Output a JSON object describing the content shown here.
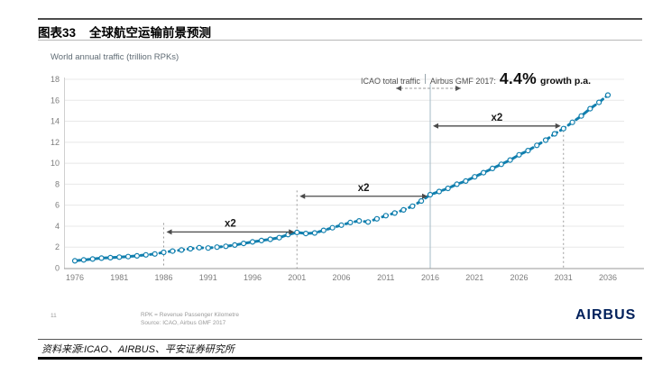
{
  "header": {
    "figure_label": "图表33",
    "title": "全球航空运输前景预测"
  },
  "footer": {
    "source_text": "资料来源:ICAO、AIRBUS、平安证券研究所"
  },
  "slide": {
    "page_number": "11",
    "footnote_line1": "RPK = Revenue Passenger Kilometre",
    "footnote_line2": "Source: ICAO, Airbus GMF 2017",
    "brand": "AIRBUS"
  },
  "colors": {
    "curve": "#117fae",
    "marker_fill": "#ffffff",
    "airbus_navy": "#00205b",
    "arrow": "#4a4a4a",
    "grid": "#e8e8e8",
    "axis": "#9a9a9a",
    "tick_text": "#7d7d7d",
    "note_gray": "#4f4f4f",
    "line_2016": "#a3bac6",
    "dotted_line": "#9a9a9a"
  },
  "chart_data": {
    "type": "line",
    "title": "World annual traffic (trillion RPKs)",
    "xlabel": "",
    "ylabel": "World annual traffic (trillion RPKs)",
    "xlim": [
      1976,
      2036
    ],
    "ylim": [
      0,
      18
    ],
    "grid": "horizontal",
    "x_ticks": [
      1976,
      1981,
      1986,
      1991,
      1996,
      2001,
      2006,
      2011,
      2016,
      2021,
      2026,
      2031,
      2036
    ],
    "y_ticks": [
      0,
      2,
      4,
      6,
      8,
      10,
      12,
      14,
      16,
      18
    ],
    "series": [
      {
        "name": "World annual traffic (trillion RPKs)",
        "style": "dashed-with-open-markers",
        "x_start": 1976,
        "x_step": 1,
        "values": [
          0.7,
          0.78,
          0.87,
          0.95,
          1.0,
          1.05,
          1.1,
          1.17,
          1.26,
          1.35,
          1.5,
          1.62,
          1.73,
          1.85,
          1.95,
          1.92,
          2.0,
          2.08,
          2.2,
          2.35,
          2.5,
          2.63,
          2.75,
          2.9,
          3.2,
          3.4,
          3.3,
          3.35,
          3.6,
          3.85,
          4.1,
          4.35,
          4.5,
          4.4,
          4.7,
          5.0,
          5.25,
          5.55,
          5.9,
          6.4,
          7.0,
          7.3,
          7.6,
          8.0,
          8.3,
          8.7,
          9.1,
          9.5,
          9.9,
          10.3,
          10.8,
          11.2,
          11.7,
          12.2,
          12.8,
          13.3,
          13.9,
          14.5,
          15.2,
          15.8,
          16.5
        ]
      }
    ],
    "doubling_arrows": [
      {
        "label": "x2",
        "from_year": 1986,
        "to_year": 2001,
        "value": 3.45
      },
      {
        "label": "x2",
        "from_year": 2001,
        "to_year": 2016,
        "value": 6.85
      },
      {
        "label": "x2",
        "from_year": 2016,
        "to_year": 2031,
        "value": 13.55
      }
    ],
    "vertical_lines": [
      {
        "year": 1986,
        "style": "dotted",
        "top_value": 4.3
      },
      {
        "year": 2001,
        "style": "dotted",
        "top_value": 7.4
      },
      {
        "year": 2016,
        "style": "solid",
        "top_value": 17.6
      },
      {
        "year": 2031,
        "style": "dotted",
        "top_value": 13.55
      }
    ],
    "top_note": {
      "left_label": "ICAO total traffic",
      "right_label": "Airbus GMF 2017:",
      "highlight": "4.4%",
      "suffix": "growth p.a."
    }
  }
}
